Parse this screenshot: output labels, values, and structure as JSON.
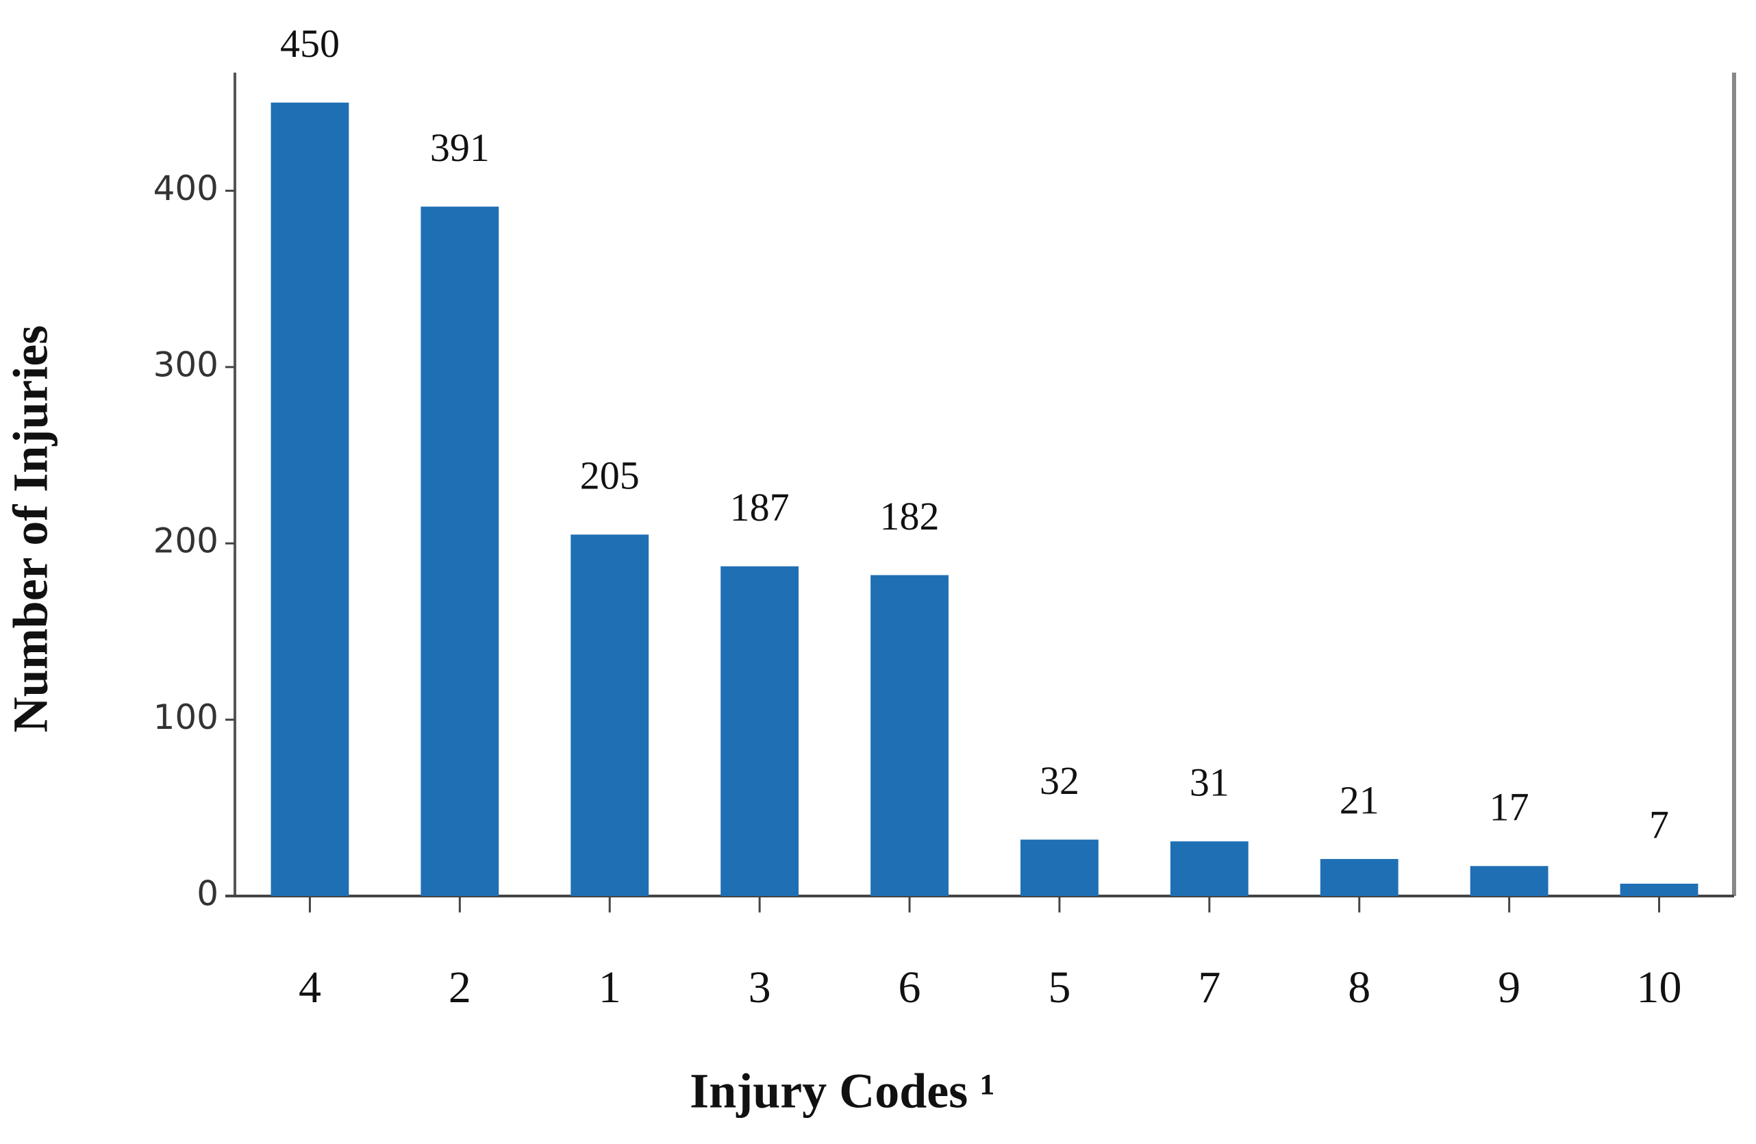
{
  "chart_data": {
    "type": "bar",
    "x_label": "Injury Codes ¹",
    "y_label": "Number of Injuries",
    "categories": [
      "4",
      "2",
      "1",
      "3",
      "6",
      "5",
      "7",
      "8",
      "9",
      "10"
    ],
    "values": [
      450,
      391,
      205,
      187,
      182,
      32,
      31,
      21,
      17,
      7
    ],
    "color": "#1f6fb5",
    "ylim": [
      0,
      467
    ],
    "yticks": [
      0,
      100,
      200,
      300,
      400
    ],
    "grid": false
  }
}
